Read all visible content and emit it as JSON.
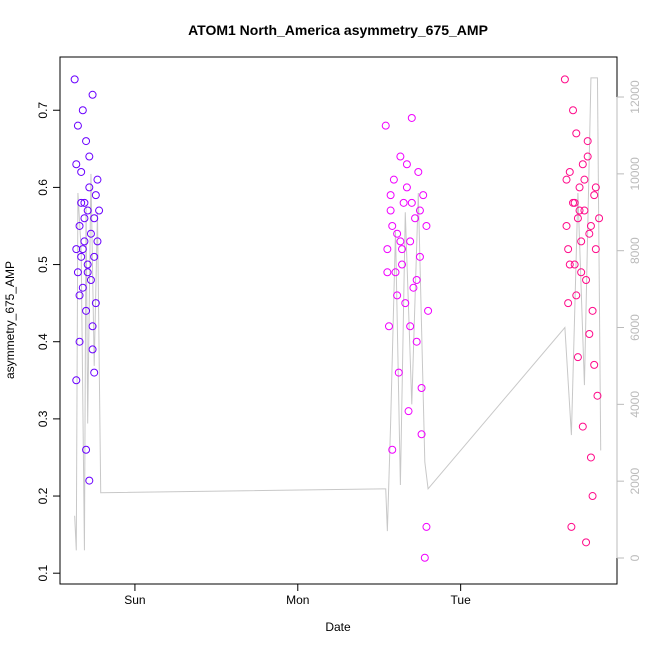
{
  "chart_data": {
    "type": "scatter",
    "title": "ATOM1 North_America asymmetry_675_AMP",
    "x_label": "Date",
    "y_label": "asymmetry_675_AMP",
    "xlim": [
      0.54,
      3.96
    ],
    "xticks": [
      {
        "value": 1,
        "label": "Sun"
      },
      {
        "value": 2,
        "label": "Mon"
      },
      {
        "value": 3,
        "label": "Tue"
      }
    ],
    "ylim": [
      0.086,
      0.769
    ],
    "yticks": [
      0.1,
      0.2,
      0.3,
      0.4,
      0.5,
      0.6,
      0.7
    ],
    "y2lim": [
      -677,
      13042
    ],
    "y2ticks": [
      0,
      2000,
      4000,
      6000,
      8000,
      10000,
      12000
    ],
    "y2_color": "#bbbbbb",
    "series": [
      {
        "color": "#6a00ff",
        "x": [
          0.63,
          0.64,
          0.64,
          0.65,
          0.65,
          0.66,
          0.66,
          0.67,
          0.67,
          0.68,
          0.68,
          0.69,
          0.69,
          0.7,
          0.7,
          0.71,
          0.71,
          0.72,
          0.72,
          0.73,
          0.73,
          0.74,
          0.74,
          0.75,
          0.75,
          0.76,
          0.76,
          0.77,
          0.77,
          0.78,
          0.64,
          0.66,
          0.68,
          0.7,
          0.72,
          0.74,
          0.69,
          0.71,
          0.67,
          0.75
        ],
        "values": [
          0.74,
          0.52,
          0.35,
          0.68,
          0.49,
          0.55,
          0.4,
          0.62,
          0.51,
          0.7,
          0.47,
          0.58,
          0.53,
          0.66,
          0.44,
          0.5,
          0.57,
          0.6,
          0.22,
          0.48,
          0.54,
          0.72,
          0.39,
          0.56,
          0.51,
          0.59,
          0.45,
          0.53,
          0.61,
          0.57,
          0.63,
          0.46,
          0.52,
          0.26,
          0.64,
          0.42,
          0.56,
          0.49,
          0.58,
          0.36
        ]
      },
      {
        "color": "#f000ff",
        "x": [
          2.54,
          2.55,
          2.56,
          2.57,
          2.58,
          2.59,
          2.6,
          2.61,
          2.62,
          2.63,
          2.64,
          2.65,
          2.66,
          2.67,
          2.68,
          2.69,
          2.7,
          2.71,
          2.72,
          2.73,
          2.74,
          2.75,
          2.76,
          2.77,
          2.78,
          2.79,
          2.8,
          2.55,
          2.58,
          2.61,
          2.64,
          2.67,
          2.7,
          2.73,
          2.76,
          2.79,
          2.57,
          2.63,
          2.69,
          2.75
        ],
        "values": [
          0.68,
          0.52,
          0.42,
          0.57,
          0.26,
          0.61,
          0.49,
          0.54,
          0.36,
          0.64,
          0.5,
          0.58,
          0.45,
          0.6,
          0.31,
          0.53,
          0.69,
          0.47,
          0.56,
          0.4,
          0.62,
          0.51,
          0.28,
          0.59,
          0.12,
          0.55,
          0.44,
          0.49,
          0.55,
          0.46,
          0.52,
          0.63,
          0.58,
          0.48,
          0.34,
          0.16,
          0.59,
          0.53,
          0.42,
          0.57
        ]
      },
      {
        "color": "#ff0a8a",
        "x": [
          3.64,
          3.65,
          3.66,
          3.67,
          3.68,
          3.69,
          3.7,
          3.71,
          3.72,
          3.73,
          3.74,
          3.75,
          3.76,
          3.77,
          3.78,
          3.79,
          3.8,
          3.81,
          3.82,
          3.83,
          3.84,
          3.85,
          3.65,
          3.67,
          3.69,
          3.71,
          3.73,
          3.75,
          3.77,
          3.79,
          3.81,
          3.83,
          3.66,
          3.7,
          3.74,
          3.78,
          3.82,
          3.72,
          3.76,
          3.8
        ],
        "values": [
          0.74,
          0.55,
          0.45,
          0.62,
          0.16,
          0.58,
          0.5,
          0.67,
          0.38,
          0.6,
          0.53,
          0.29,
          0.57,
          0.48,
          0.64,
          0.41,
          0.55,
          0.2,
          0.59,
          0.52,
          0.33,
          0.56,
          0.61,
          0.5,
          0.7,
          0.46,
          0.57,
          0.63,
          0.14,
          0.54,
          0.44,
          0.6,
          0.52,
          0.58,
          0.49,
          0.66,
          0.37,
          0.56,
          0.61,
          0.25
        ]
      },
      {
        "color": "#c8c8c8",
        "axis": "y2",
        "x": [
          0.63,
          0.64,
          0.65,
          0.67,
          0.69,
          0.7,
          0.71,
          0.73,
          0.75,
          0.77,
          0.79,
          2.54,
          2.55,
          2.57,
          2.6,
          2.63,
          2.66,
          2.7,
          2.74,
          2.78,
          2.8,
          3.64,
          3.68,
          3.72,
          3.76,
          3.8,
          3.84,
          3.86
        ],
        "values": [
          1100,
          200,
          9500,
          8000,
          200,
          9200,
          3500,
          10000,
          5000,
          9000,
          1700,
          1800,
          700,
          3500,
          8500,
          1900,
          9000,
          4000,
          9500,
          2500,
          1800,
          6000,
          3200,
          9500,
          4500,
          12500,
          12500,
          2800
        ]
      }
    ]
  }
}
